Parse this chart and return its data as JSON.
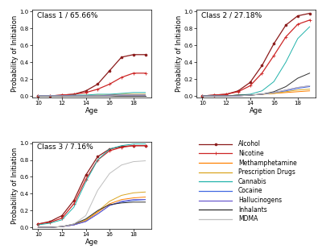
{
  "age": [
    10,
    11,
    12,
    13,
    14,
    15,
    16,
    17,
    18,
    19
  ],
  "title_fontsize": 6.5,
  "axis_label_fontsize": 6,
  "tick_fontsize": 5,
  "legend_fontsize": 5.5,
  "substances": [
    "Alcohol",
    "Nicotine",
    "Methamphetamine",
    "Prescription Drugs",
    "Cannabis",
    "Cocaine",
    "Hallucinogens",
    "Inhalants",
    "MDMA"
  ],
  "colors": [
    "#8B1A1A",
    "#CD2626",
    "#FF8000",
    "#DAA520",
    "#20B2AA",
    "#4169E1",
    "#6A5ACD",
    "#2F2F2F",
    "#BEBEBE"
  ],
  "class1": {
    "title": "Class 1 / 65.66%",
    "Alcohol": [
      0.0,
      0.0,
      0.01,
      0.02,
      0.06,
      0.14,
      0.3,
      0.46,
      0.49,
      0.49
    ],
    "Nicotine": [
      0.0,
      0.0,
      0.01,
      0.02,
      0.04,
      0.08,
      0.14,
      0.22,
      0.27,
      0.27
    ],
    "Methamphetamine": [
      0.0,
      0.0,
      0.0,
      0.0,
      0.0,
      0.0,
      0.01,
      0.01,
      0.01,
      0.01
    ],
    "Prescription Drugs": [
      0.0,
      0.0,
      0.0,
      0.0,
      0.01,
      0.01,
      0.01,
      0.02,
      0.02,
      0.02
    ],
    "Cannabis": [
      0.0,
      0.0,
      0.0,
      0.01,
      0.01,
      0.02,
      0.02,
      0.03,
      0.04,
      0.04
    ],
    "Cocaine": [
      0.0,
      0.0,
      0.0,
      0.0,
      0.0,
      0.0,
      0.0,
      0.01,
      0.01,
      0.01
    ],
    "Hallucinogens": [
      0.0,
      0.0,
      0.0,
      0.0,
      0.0,
      0.0,
      0.01,
      0.01,
      0.01,
      0.01
    ],
    "Inhalants": [
      0.0,
      0.0,
      0.0,
      0.0,
      0.0,
      0.0,
      0.0,
      0.0,
      0.0,
      0.0
    ],
    "MDMA": [
      0.0,
      0.0,
      0.0,
      0.0,
      0.0,
      0.0,
      0.0,
      0.01,
      0.01,
      0.01
    ]
  },
  "class2": {
    "title": "Class 2 / 27.18%",
    "Alcohol": [
      0.0,
      0.01,
      0.02,
      0.06,
      0.16,
      0.36,
      0.62,
      0.84,
      0.95,
      0.98
    ],
    "Nicotine": [
      0.0,
      0.01,
      0.02,
      0.05,
      0.12,
      0.27,
      0.48,
      0.7,
      0.85,
      0.9
    ],
    "Methamphetamine": [
      0.0,
      0.0,
      0.0,
      0.0,
      0.01,
      0.02,
      0.03,
      0.04,
      0.05,
      0.06
    ],
    "Prescription Drugs": [
      0.0,
      0.0,
      0.0,
      0.01,
      0.01,
      0.02,
      0.03,
      0.05,
      0.07,
      0.08
    ],
    "Cannabis": [
      0.0,
      0.0,
      0.0,
      0.01,
      0.02,
      0.06,
      0.17,
      0.4,
      0.68,
      0.82
    ],
    "Cocaine": [
      0.0,
      0.0,
      0.0,
      0.0,
      0.01,
      0.02,
      0.04,
      0.06,
      0.09,
      0.11
    ],
    "Hallucinogens": [
      0.0,
      0.0,
      0.0,
      0.0,
      0.01,
      0.02,
      0.04,
      0.07,
      0.1,
      0.12
    ],
    "Inhalants": [
      0.0,
      0.0,
      0.0,
      0.01,
      0.01,
      0.02,
      0.05,
      0.11,
      0.21,
      0.27
    ],
    "MDMA": [
      0.0,
      0.0,
      0.0,
      0.0,
      0.01,
      0.02,
      0.04,
      0.07,
      0.1,
      0.12
    ]
  },
  "class3": {
    "title": "Class 3 / 7.16%",
    "Alcohol": [
      0.04,
      0.07,
      0.14,
      0.32,
      0.62,
      0.84,
      0.93,
      0.96,
      0.97,
      0.97
    ],
    "Nicotine": [
      0.04,
      0.06,
      0.11,
      0.28,
      0.57,
      0.8,
      0.91,
      0.95,
      0.97,
      0.97
    ],
    "Methamphetamine": [
      0.0,
      0.0,
      0.01,
      0.03,
      0.08,
      0.18,
      0.28,
      0.33,
      0.35,
      0.36
    ],
    "Prescription Drugs": [
      0.0,
      0.0,
      0.01,
      0.03,
      0.09,
      0.19,
      0.31,
      0.38,
      0.41,
      0.42
    ],
    "Cannabis": [
      0.03,
      0.05,
      0.09,
      0.24,
      0.54,
      0.8,
      0.93,
      0.97,
      0.99,
      0.99
    ],
    "Cocaine": [
      0.0,
      0.0,
      0.01,
      0.03,
      0.07,
      0.16,
      0.26,
      0.3,
      0.32,
      0.33
    ],
    "Hallucinogens": [
      0.0,
      0.0,
      0.01,
      0.03,
      0.07,
      0.16,
      0.26,
      0.31,
      0.33,
      0.33
    ],
    "Inhalants": [
      0.0,
      0.0,
      0.01,
      0.04,
      0.1,
      0.2,
      0.27,
      0.29,
      0.3,
      0.3
    ],
    "MDMA": [
      0.0,
      0.0,
      0.01,
      0.04,
      0.14,
      0.44,
      0.64,
      0.74,
      0.78,
      0.79
    ]
  }
}
